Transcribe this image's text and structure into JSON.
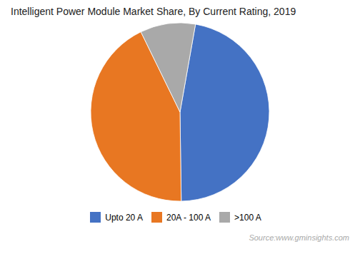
{
  "chart_data": {
    "type": "pie",
    "title": "Intelligent Power Module Market Share, By Current Rating, 2019",
    "categories": [
      "Upto 20 A",
      "20A - 100 A",
      ">100 A"
    ],
    "values": [
      47,
      43,
      10
    ],
    "colors": [
      "#4472C4",
      "#E87722",
      "#A9A9A9"
    ],
    "legend": "bottom",
    "annotations": [
      "Source:www.gminsights.com"
    ]
  }
}
